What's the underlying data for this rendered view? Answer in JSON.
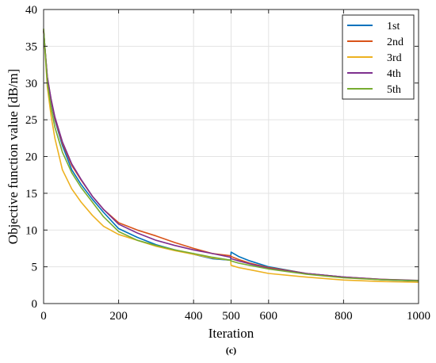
{
  "chart_data": {
    "type": "line",
    "xlabel": "Iteration",
    "ylabel": "Objective function value [dB/m]",
    "caption": "(c)",
    "xlim": [
      0,
      1000
    ],
    "ylim": [
      0,
      40
    ],
    "xticks": [
      0,
      200,
      400,
      500,
      600,
      800,
      1000
    ],
    "yticks": [
      0,
      5,
      10,
      15,
      20,
      25,
      30,
      35,
      40
    ],
    "grid": true,
    "legend_position": "top-right",
    "series": [
      {
        "name": "1st",
        "color": "#0072BD",
        "x": [
          0,
          10,
          20,
          30,
          50,
          75,
          100,
          130,
          160,
          200,
          250,
          300,
          350,
          400,
          450,
          499,
          500,
          520,
          550,
          600,
          700,
          800,
          900,
          1000
        ],
        "y": [
          37.2,
          30.5,
          27.5,
          25.0,
          21.5,
          18.2,
          16.2,
          14.2,
          12.4,
          10.2,
          9.0,
          8.0,
          7.3,
          6.7,
          6.1,
          5.9,
          7.0,
          6.4,
          5.8,
          5.0,
          4.1,
          3.6,
          3.25,
          3.05
        ]
      },
      {
        "name": "2nd",
        "color": "#D95319",
        "x": [
          0,
          10,
          20,
          30,
          50,
          75,
          100,
          130,
          160,
          200,
          250,
          300,
          350,
          400,
          450,
          499,
          500,
          520,
          550,
          600,
          700,
          800,
          900,
          1000
        ],
        "y": [
          37.0,
          30.8,
          27.7,
          25.2,
          21.8,
          18.8,
          16.8,
          14.6,
          12.8,
          11.0,
          10.0,
          9.2,
          8.3,
          7.5,
          6.8,
          6.5,
          6.4,
          6.0,
          5.5,
          4.9,
          4.1,
          3.6,
          3.3,
          3.1
        ]
      },
      {
        "name": "3rd",
        "color": "#EDB120",
        "x": [
          0,
          10,
          20,
          30,
          50,
          75,
          100,
          130,
          160,
          200,
          250,
          300,
          350,
          400,
          450,
          499,
          500,
          520,
          550,
          600,
          700,
          800,
          900,
          1000
        ],
        "y": [
          37.3,
          29.5,
          25.5,
          22.5,
          18.2,
          15.6,
          13.8,
          12.0,
          10.5,
          9.4,
          8.6,
          7.8,
          7.2,
          6.7,
          6.2,
          5.9,
          5.2,
          4.9,
          4.6,
          4.1,
          3.6,
          3.2,
          3.0,
          2.9
        ]
      },
      {
        "name": "4th",
        "color": "#7E2F8E",
        "x": [
          0,
          10,
          20,
          30,
          50,
          75,
          100,
          130,
          160,
          200,
          250,
          300,
          350,
          400,
          450,
          499,
          500,
          520,
          550,
          600,
          700,
          800,
          900,
          1000
        ],
        "y": [
          37.1,
          30.8,
          27.8,
          25.4,
          22.0,
          19.0,
          16.9,
          14.6,
          12.8,
          10.8,
          9.6,
          8.6,
          7.9,
          7.3,
          6.8,
          6.3,
          6.1,
          5.8,
          5.4,
          4.8,
          4.1,
          3.6,
          3.3,
          3.15
        ]
      },
      {
        "name": "5th",
        "color": "#77AC30",
        "x": [
          0,
          10,
          20,
          30,
          50,
          75,
          100,
          130,
          160,
          200,
          250,
          300,
          350,
          400,
          450,
          499,
          500,
          520,
          550,
          600,
          700,
          800,
          900,
          1000
        ],
        "y": [
          37.4,
          30.0,
          26.6,
          24.0,
          20.6,
          17.8,
          15.8,
          13.8,
          11.8,
          9.8,
          8.6,
          7.9,
          7.3,
          6.8,
          6.3,
          5.9,
          5.8,
          5.5,
          5.2,
          4.7,
          4.0,
          3.5,
          3.25,
          3.1
        ]
      }
    ]
  }
}
